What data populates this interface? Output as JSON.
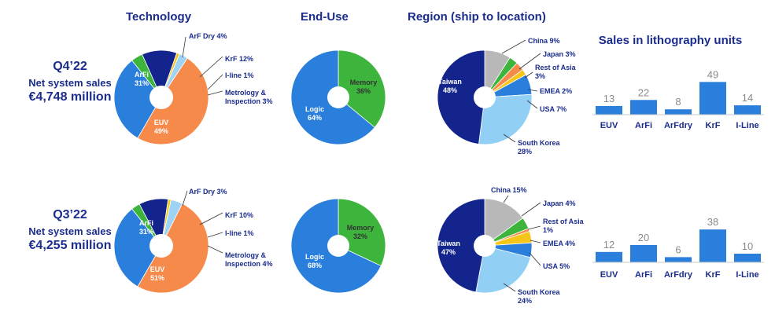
{
  "headers": {
    "technology": "Technology",
    "end_use": "End-Use",
    "region": "Region (ship to location)",
    "litho": "Sales in lithography units"
  },
  "colors": {
    "title": "#1a2c8c",
    "euv": "#f58a4a",
    "arfi": "#2a7fdc",
    "arfdry": "#3db53d",
    "krf": "#13248c",
    "iline": "#f5c518",
    "metrology": "#9ed3f5",
    "memory": "#3db53d",
    "logic": "#2a7fdc",
    "taiwan": "#13248c",
    "southkorea": "#92cff5",
    "usa": "#2a7fdc",
    "emea": "#f5c518",
    "restasia": "#f58a4a",
    "japan": "#3db53d",
    "china": "#b8b8b8",
    "bar": "#2a7fdc",
    "bar_value": "#8a8a8a"
  },
  "quarters": [
    {
      "id": "q4",
      "quarter": "Q4’22",
      "sales_label": "Net system sales",
      "sales_value": "€4,748 million"
    },
    {
      "id": "q3",
      "quarter": "Q3’22",
      "sales_label": "Net system sales",
      "sales_value": "€4,255 million"
    }
  ],
  "chart_data": [
    {
      "id": "q4-technology",
      "type": "pie",
      "slices": [
        {
          "label": "EUV",
          "value": 49,
          "color": "euv"
        },
        {
          "label": "ArFi",
          "value": 31,
          "color": "arfi"
        },
        {
          "label": "ArF Dry",
          "value": 4,
          "color": "arfdry"
        },
        {
          "label": "KrF",
          "value": 12,
          "color": "krf"
        },
        {
          "label": "I-line",
          "value": 1,
          "color": "iline"
        },
        {
          "label": "Metrology & Inspection",
          "value": 3,
          "color": "metrology"
        }
      ]
    },
    {
      "id": "q4-enduse",
      "type": "pie",
      "slices": [
        {
          "label": "Memory",
          "value": 36,
          "color": "memory"
        },
        {
          "label": "Logic",
          "value": 64,
          "color": "logic"
        }
      ]
    },
    {
      "id": "q4-region",
      "type": "pie",
      "slices": [
        {
          "label": "China",
          "value": 9,
          "color": "china"
        },
        {
          "label": "Japan",
          "value": 3,
          "color": "japan"
        },
        {
          "label": "Rest of Asia",
          "value": 3,
          "color": "restasia"
        },
        {
          "label": "EMEA",
          "value": 2,
          "color": "emea"
        },
        {
          "label": "USA",
          "value": 7,
          "color": "usa"
        },
        {
          "label": "South Korea",
          "value": 28,
          "color": "southkorea"
        },
        {
          "label": "Taiwan",
          "value": 48,
          "color": "taiwan"
        }
      ]
    },
    {
      "id": "q4-litho",
      "type": "bar",
      "categories": [
        "EUV",
        "ArFi",
        "ArFdry",
        "KrF",
        "I-Line"
      ],
      "values": [
        13,
        22,
        8,
        49,
        14
      ]
    },
    {
      "id": "q3-technology",
      "type": "pie",
      "slices": [
        {
          "label": "EUV",
          "value": 51,
          "color": "euv"
        },
        {
          "label": "ArFi",
          "value": 31,
          "color": "arfi"
        },
        {
          "label": "ArF Dry",
          "value": 3,
          "color": "arfdry"
        },
        {
          "label": "KrF",
          "value": 10,
          "color": "krf"
        },
        {
          "label": "I-line",
          "value": 1,
          "color": "iline"
        },
        {
          "label": "Metrology & Inspection",
          "value": 4,
          "color": "metrology"
        }
      ]
    },
    {
      "id": "q3-enduse",
      "type": "pie",
      "slices": [
        {
          "label": "Memory",
          "value": 32,
          "color": "memory"
        },
        {
          "label": "Logic",
          "value": 68,
          "color": "logic"
        }
      ]
    },
    {
      "id": "q3-region",
      "type": "pie",
      "slices": [
        {
          "label": "China",
          "value": 15,
          "color": "china"
        },
        {
          "label": "Japan",
          "value": 4,
          "color": "japan"
        },
        {
          "label": "Rest of Asia",
          "value": 1,
          "color": "restasia"
        },
        {
          "label": "EMEA",
          "value": 4,
          "color": "emea"
        },
        {
          "label": "USA",
          "value": 5,
          "color": "usa"
        },
        {
          "label": "South Korea",
          "value": 24,
          "color": "southkorea"
        },
        {
          "label": "Taiwan",
          "value": 47,
          "color": "taiwan"
        }
      ]
    },
    {
      "id": "q3-litho",
      "type": "bar",
      "categories": [
        "EUV",
        "ArFi",
        "ArFdry",
        "KrF",
        "I-Line"
      ],
      "values": [
        12,
        20,
        6,
        38,
        10
      ]
    }
  ]
}
